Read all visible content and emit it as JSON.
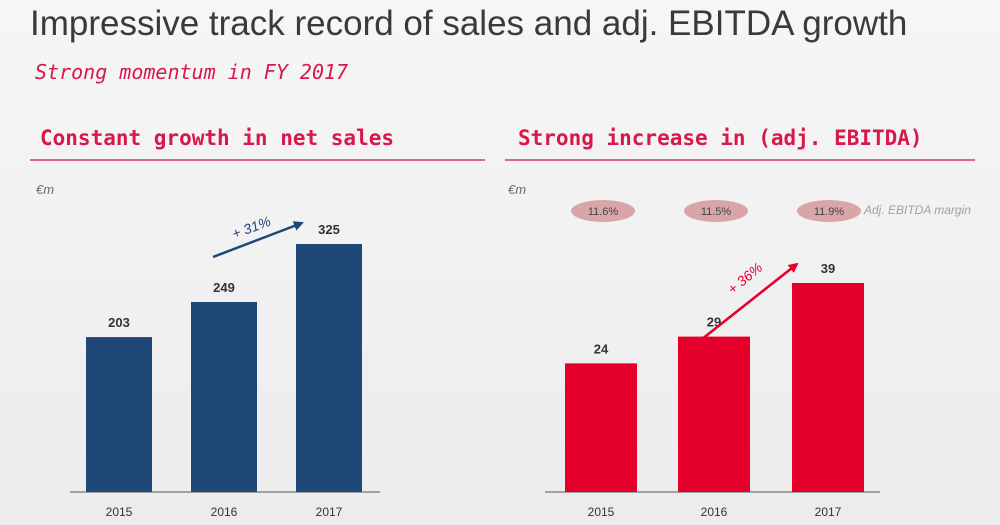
{
  "title": "Impressive track record of sales and adj. EBITDA growth",
  "subtitle": "Strong momentum in FY 2017",
  "colors": {
    "sales_bar": "#1f4778",
    "ebitda_bar": "#e4002b",
    "accent_text": "#d8184a"
  },
  "chart_data": [
    {
      "type": "bar",
      "heading": "Constant growth in net sales",
      "unit": "€m",
      "categories": [
        "2015",
        "2016",
        "2017"
      ],
      "values": [
        203,
        249,
        325
      ],
      "growth_annotation": "+ 31%",
      "ylim": [
        0,
        325
      ]
    },
    {
      "type": "bar",
      "heading": "Strong increase in (adj. EBITDA)",
      "unit": "€m",
      "categories": [
        "2015",
        "2016",
        "2017"
      ],
      "values": [
        24,
        29,
        39
      ],
      "growth_annotation": "+ 36%",
      "margins": [
        "11.6%",
        "11.5%",
        "11.9%"
      ],
      "margin_label": "Adj. EBITDA margin",
      "ylim": [
        0,
        39
      ]
    }
  ]
}
